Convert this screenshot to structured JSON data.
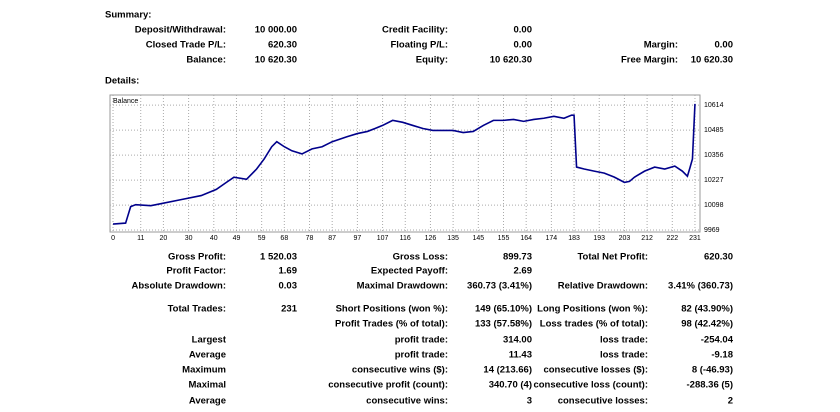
{
  "summary": {
    "heading": "Summary:",
    "rows": [
      [
        {
          "label": "Deposit/Withdrawal:",
          "value": "10 000.00"
        },
        {
          "label": "Credit Facility:",
          "value": "0.00"
        },
        null
      ],
      [
        {
          "label": "Closed Trade P/L:",
          "value": "620.30"
        },
        {
          "label": "Floating P/L:",
          "value": "0.00"
        },
        {
          "label": "Margin:",
          "value": "0.00"
        }
      ],
      [
        {
          "label": "Balance:",
          "value": "10 620.30"
        },
        {
          "label": "Equity:",
          "value": "10 620.30"
        },
        {
          "label": "Free Margin:",
          "value": "10 620.30"
        }
      ]
    ]
  },
  "details": {
    "heading": "Details:",
    "rows": [
      [
        {
          "label": "Gross Profit:",
          "value": "1 520.03"
        },
        {
          "label": "Gross Loss:",
          "value": "899.73"
        },
        {
          "label": "Total Net Profit:",
          "value": "620.30"
        }
      ],
      [
        {
          "label": "Profit Factor:",
          "value": "1.69"
        },
        {
          "label": "Expected Payoff:",
          "value": "2.69"
        },
        null
      ],
      [
        {
          "label": "Absolute Drawdown:",
          "value": "0.03"
        },
        {
          "label": "Maximal Drawdown:",
          "value": "360.73 (3.41%)"
        },
        {
          "label": "Relative Drawdown:",
          "value": "3.41% (360.73)"
        }
      ],
      [
        {
          "label": "Total Trades:",
          "value": "231"
        },
        {
          "label": "Short Positions (won %):",
          "value": "149 (65.10%)"
        },
        {
          "label": "Long Positions (won %):",
          "value": "82 (43.90%)"
        }
      ],
      [
        null,
        {
          "label": "Profit Trades (% of total):",
          "value": "133 (57.58%)"
        },
        {
          "label": "Loss trades (% of total):",
          "value": "98 (42.42%)"
        }
      ],
      [
        {
          "label": "Largest"
        },
        {
          "label": "profit trade:",
          "value": "314.00"
        },
        {
          "label": "loss trade:",
          "value": "-254.04"
        }
      ],
      [
        {
          "label": "Average"
        },
        {
          "label": "profit trade:",
          "value": "11.43"
        },
        {
          "label": "loss trade:",
          "value": "-9.18"
        }
      ],
      [
        {
          "label": "Maximum"
        },
        {
          "label": "consecutive wins ($):",
          "value": "14 (213.66)"
        },
        {
          "label": "consecutive losses ($):",
          "value": "8 (-46.93)"
        }
      ],
      [
        {
          "label": "Maximal"
        },
        {
          "label": "consecutive profit (count):",
          "value": "340.70 (4)"
        },
        {
          "label": "consecutive loss (count):",
          "value": "-288.36 (5)"
        }
      ],
      [
        {
          "label": "Average"
        },
        {
          "label": "consecutive wins:",
          "value": "3"
        },
        {
          "label": "consecutive losses:",
          "value": "2"
        }
      ]
    ]
  },
  "chart_data": {
    "type": "line",
    "x": [
      0,
      5,
      7,
      9,
      15,
      19,
      27,
      35,
      41,
      45,
      48,
      53,
      57,
      60,
      63,
      65,
      68,
      71,
      75,
      79,
      83,
      87,
      93,
      97,
      101,
      104,
      107,
      111,
      115,
      119,
      123,
      127,
      131,
      135,
      139,
      143,
      147,
      151,
      155,
      159,
      163,
      167,
      171,
      175,
      179,
      182,
      183,
      184,
      187,
      191,
      195,
      199,
      203,
      205,
      207,
      211,
      215,
      219,
      223,
      226,
      228,
      229,
      230,
      231
    ],
    "series": [
      {
        "name": "Balance",
        "color": "#00008b",
        "values": [
          10000,
          10005,
          10090,
          10100,
          10095,
          10105,
          10126,
          10147,
          10179,
          10215,
          10242,
          10231,
          10284,
          10336,
          10399,
          10425,
          10399,
          10378,
          10362,
          10388,
          10399,
          10425,
          10451,
          10467,
          10478,
          10493,
          10509,
          10535,
          10525,
          10509,
          10493,
          10483,
          10483,
          10483,
          10472,
          10478,
          10509,
          10535,
          10535,
          10540,
          10530,
          10540,
          10546,
          10556,
          10546,
          10562,
          10562,
          10294,
          10284,
          10273,
          10263,
          10242,
          10215,
          10220,
          10242,
          10273,
          10294,
          10284,
          10299,
          10273,
          10247,
          10290,
          10336,
          10620.3
        ]
      }
    ],
    "xlim": [
      -1.2,
      233
    ],
    "ylim": [
      9959,
      10666
    ],
    "xticks": [
      0,
      11,
      20,
      30,
      40,
      49,
      59,
      68,
      78,
      87,
      97,
      107,
      116,
      126,
      135,
      145,
      155,
      164,
      174,
      183,
      193,
      203,
      212,
      222,
      231
    ],
    "yticks": [
      9969,
      10098,
      10227,
      10356,
      10485,
      10614
    ],
    "grid": true
  }
}
